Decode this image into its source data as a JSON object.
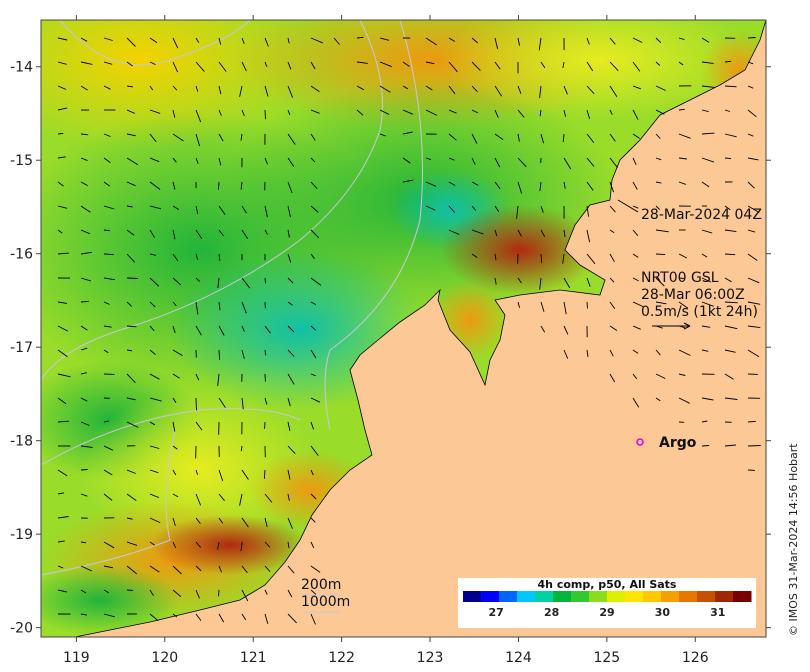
{
  "map": {
    "lon_ticks": [
      "119",
      "120",
      "121",
      "122",
      "123",
      "124",
      "125",
      "126"
    ],
    "lat_ticks": [
      "-14",
      "-15",
      "-16",
      "-17",
      "-18",
      "-19",
      "-20"
    ],
    "lon_range": [
      118.6,
      126.8
    ],
    "lat_range": [
      -20.1,
      -13.5
    ],
    "land_color": "#fcc896",
    "coast_color": "#000000"
  },
  "annotations": {
    "satellite_pass": "28-Mar-2024 04Z",
    "current_source": "NRT00 GSL",
    "current_time": "28-Mar 06:00Z",
    "current_scale": "0.5m/s (1kt 24h)",
    "argo_label": "Argo",
    "isobath_200": "200m",
    "isobath_1000": "1000m",
    "credit": "© IMOS 31-Mar-2024 14:56 Hobart"
  },
  "colorbar": {
    "title": "4h comp, p50, All Sats",
    "ticks": [
      "27",
      "28",
      "29",
      "30",
      "31"
    ],
    "colors": [
      "#00008c",
      "#0000ff",
      "#0064ff",
      "#00c8ff",
      "#00d2a0",
      "#00b43c",
      "#32c832",
      "#8cdc1e",
      "#dcf000",
      "#ffe600",
      "#ffc800",
      "#f5a000",
      "#e67800",
      "#c85000",
      "#a02800",
      "#780000"
    ]
  }
}
